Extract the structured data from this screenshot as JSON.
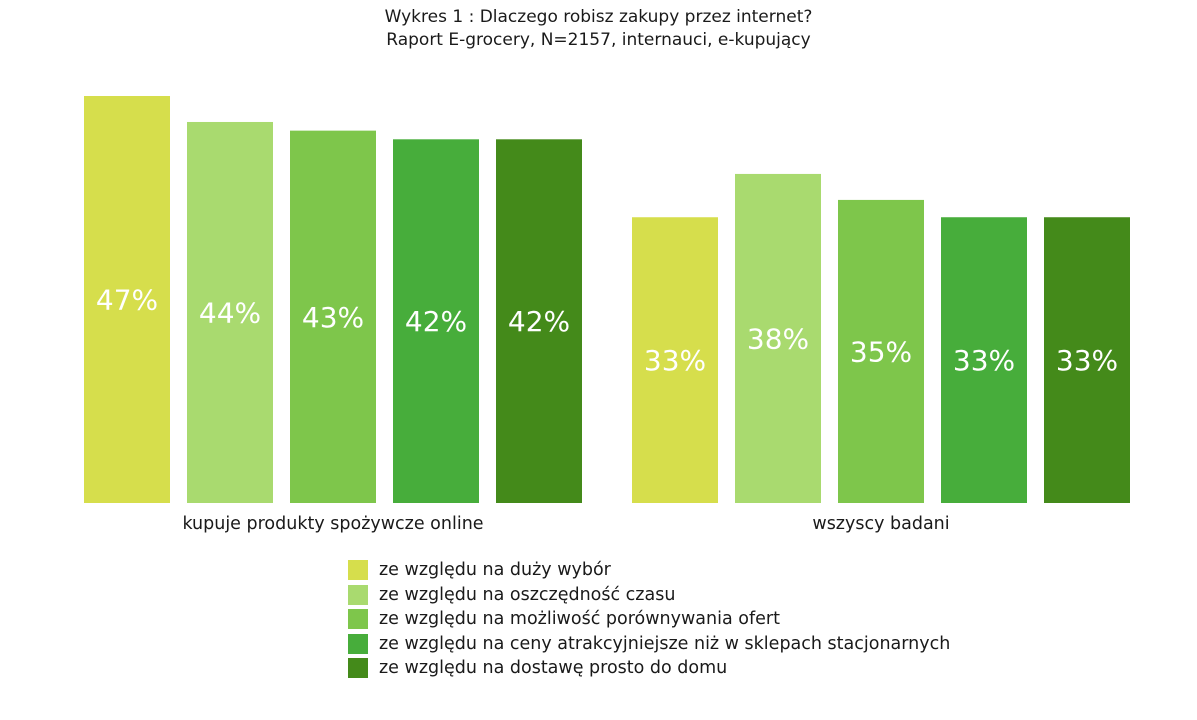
{
  "chart_data": {
    "type": "bar",
    "title": "Wykres 1 : Dlaczego robisz zakupy przez internet?",
    "subtitle": "Raport E-grocery, N=2157, internauci, e-kupujący",
    "categories": [
      "kupuje produkty spożywcze online",
      "wszyscy badani"
    ],
    "series": [
      {
        "name": "ze względu na duży wybór",
        "color": "#d6de4c",
        "values": [
          47,
          33
        ],
        "labels": [
          "47%",
          "33%"
        ]
      },
      {
        "name": "ze względu na oszczędność czasu",
        "color": "#a9da6f",
        "values": [
          44,
          38
        ],
        "labels": [
          "44%",
          "38%"
        ]
      },
      {
        "name": "ze względu na możliwość porównywania ofert",
        "color": "#7ec64b",
        "values": [
          43,
          35
        ],
        "labels": [
          "43%",
          "35%"
        ]
      },
      {
        "name": "ze względu na ceny atrakcyjniejsze niż w sklepach stacjonarnych",
        "color": "#47ad3b",
        "values": [
          42,
          33
        ],
        "labels": [
          "42%",
          "33%"
        ]
      },
      {
        "name": "ze względu na dostawę prosto do domu",
        "color": "#448a1a",
        "values": [
          42,
          33
        ],
        "labels": [
          "42%",
          "33%"
        ]
      }
    ],
    "ylim": [
      0,
      47
    ],
    "xlabel": "",
    "ylabel": "",
    "legend_position": "bottom"
  }
}
